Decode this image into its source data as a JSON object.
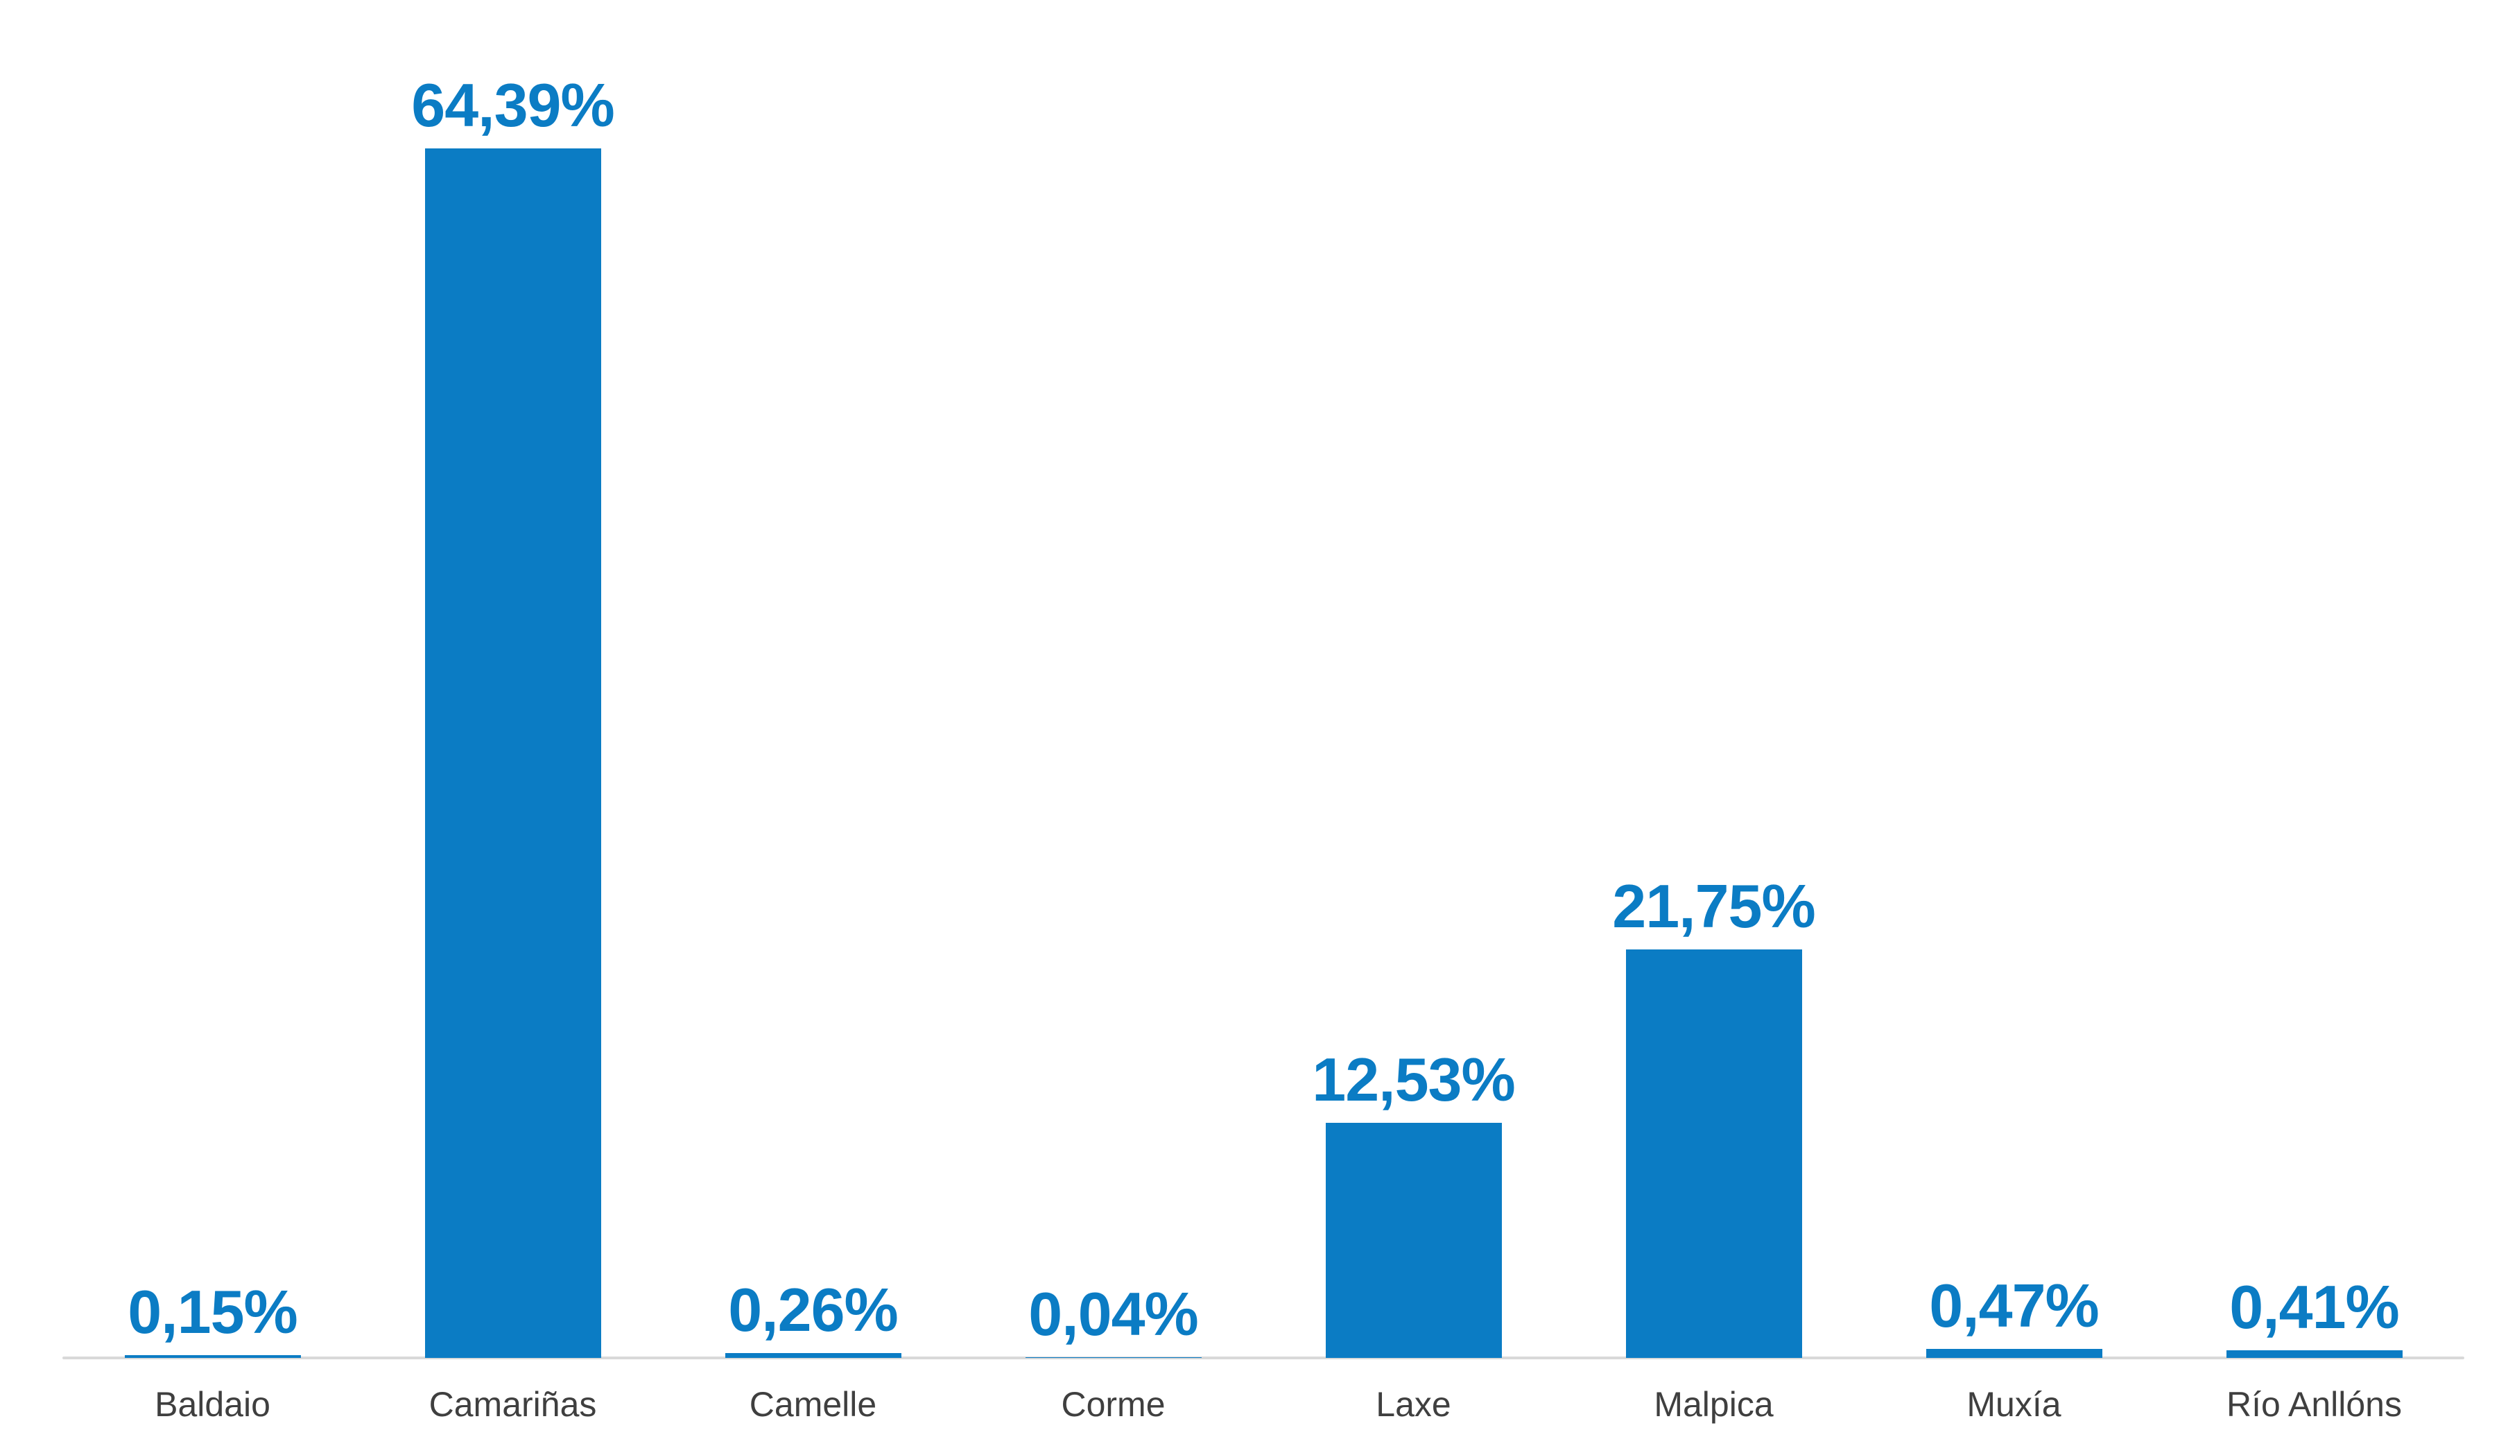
{
  "chart_data": {
    "type": "bar",
    "title": "",
    "xlabel": "",
    "ylabel": "",
    "categories": [
      "Baldaio",
      "Camariñas",
      "Camelle",
      "Corme",
      "Laxe",
      "Malpica",
      "Muxía",
      "Río Anllóns"
    ],
    "values": [
      0.15,
      64.39,
      0.26,
      0.04,
      12.53,
      21.75,
      0.47,
      0.41
    ],
    "value_labels": [
      "0,15%",
      "64,39%",
      "0,26%",
      "0,04%",
      "12,53%",
      "21,75%",
      "0,47%",
      "0,41%"
    ],
    "unit": "%",
    "decimal_separator": ",",
    "ylim": [
      0,
      64.39
    ],
    "grid": false,
    "legend": false,
    "value_label_position": "above-bar",
    "colors": {
      "bar": "#0b7cc4",
      "value_label": "#0b7cc4",
      "category_label": "#3f3f3f",
      "axis_line": "#d9d9d9",
      "background": "#ffffff"
    }
  }
}
